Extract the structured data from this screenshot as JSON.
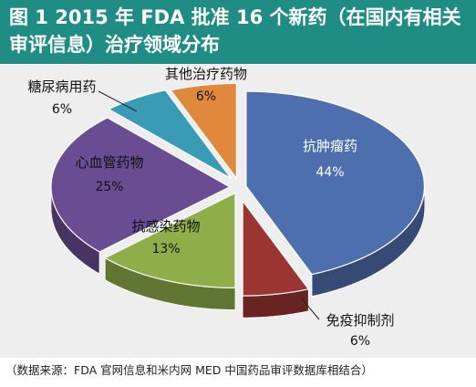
{
  "title": "图 1  2015 年 FDA 批准 16 个新药（在国内有相关审评信息）治疗领域分布",
  "source": "（数据来源：FDA 官网信息和米内网 MED 中国药品审评数据库相结合）",
  "chart_data": {
    "type": "pie",
    "title": "图 1  2015 年 FDA 批准 16 个新药（在国内有相关审评信息）治疗领域分布",
    "slices": [
      {
        "label": "抗肿瘤药",
        "value": 44,
        "value_label": "44%",
        "color": "#4e6fae"
      },
      {
        "label": "免疫抑制剂",
        "value": 6,
        "value_label": "6%",
        "color": "#9b3532"
      },
      {
        "label": "抗感染药物",
        "value": 13,
        "value_label": "13%",
        "color": "#8fad49"
      },
      {
        "label": "心血管药物",
        "value": 25,
        "value_label": "25%",
        "color": "#6a4c93"
      },
      {
        "label": "糖尿病用药",
        "value": 6,
        "value_label": "6%",
        "color": "#3a9bb7"
      },
      {
        "label": "其他治疗药物",
        "value": 6,
        "value_label": "6%",
        "color": "#e0883b"
      }
    ],
    "legend": "none",
    "style": "3d-exploded"
  }
}
